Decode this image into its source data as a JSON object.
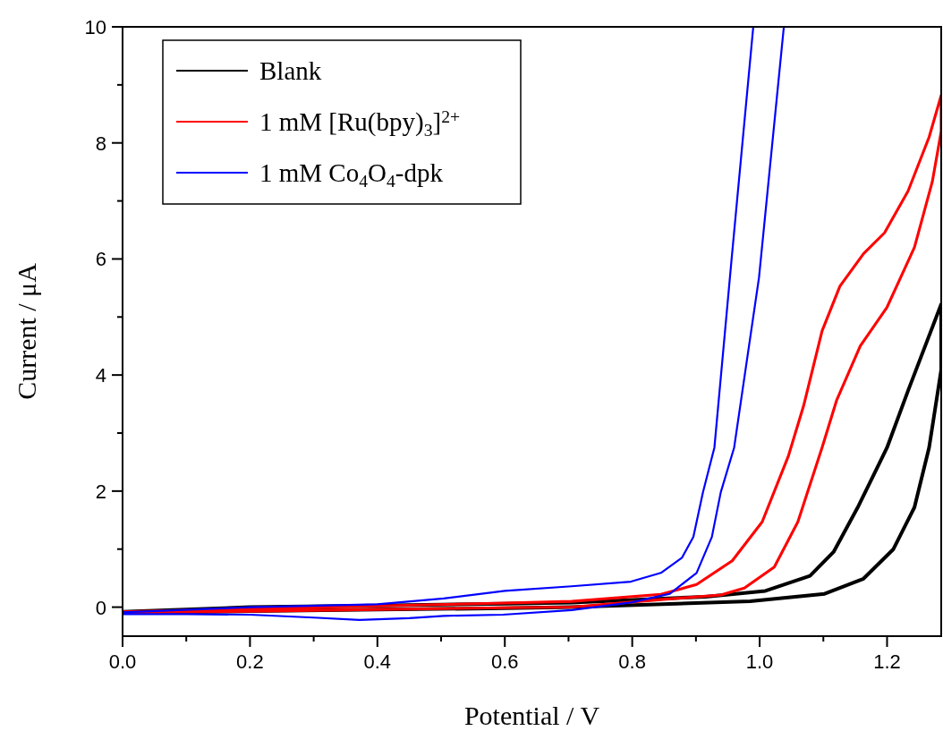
{
  "chart_data": {
    "type": "line",
    "xlabel": "Potential / V",
    "ylabel": "Current / μA",
    "xlim": [
      0,
      1.285
    ],
    "ylim": [
      -0.5,
      10
    ],
    "xticks": [
      {
        "value": 0,
        "label": "0.0"
      },
      {
        "value": 0.1,
        "label": null
      },
      {
        "value": 0.2,
        "label": "0.2"
      },
      {
        "value": 0.3,
        "label": null
      },
      {
        "value": 0.4,
        "label": "0.4"
      },
      {
        "value": 0.5,
        "label": null
      },
      {
        "value": 0.6,
        "label": "0.6"
      },
      {
        "value": 0.7,
        "label": null
      },
      {
        "value": 0.8,
        "label": "0.8"
      },
      {
        "value": 0.9,
        "label": null
      },
      {
        "value": 1.0,
        "label": "1.0"
      },
      {
        "value": 1.1,
        "label": null
      },
      {
        "value": 1.2,
        "label": "1.2"
      }
    ],
    "yticks": [
      0,
      {
        "value": 1,
        "label": null
      },
      2,
      {
        "value": 3,
        "label": null
      },
      4,
      {
        "value": 5,
        "label": null
      },
      6,
      {
        "value": 7,
        "label": null
      },
      8,
      {
        "value": 9,
        "label": null
      },
      10
    ],
    "legend": "top left",
    "grid": false,
    "marker": "none",
    "line_style": "solid",
    "series": [
      {
        "name": "Blank",
        "color": "#000000",
        "x": [
          0,
          0.2,
          0.4,
          0.6,
          0.705,
          0.985,
          1.102,
          1.163,
          1.21,
          1.243,
          1.266,
          1.285,
          1.285,
          1.233,
          1.2,
          1.154,
          1.116,
          1.079,
          1.009,
          0.915,
          0.705,
          0.6,
          0.4,
          0.2,
          0
        ],
        "values": [
          -0.1,
          -0.07,
          -0.04,
          -0.02,
          0.0,
          0.1,
          0.23,
          0.49,
          1.0,
          1.72,
          2.75,
          4.09,
          5.22,
          3.73,
          2.75,
          1.72,
          0.95,
          0.54,
          0.28,
          0.18,
          0.08,
          0.06,
          0.03,
          0.0,
          -0.08
        ]
      },
      {
        "name": "1 mM [Ru(bpy)$_{3}$]$^{2+}$",
        "color": "#ff0000",
        "x": [
          0,
          0.2,
          0.4,
          0.6,
          0.705,
          0.845,
          0.939,
          0.976,
          1.023,
          1.06,
          1.098,
          1.121,
          1.158,
          1.2,
          1.243,
          1.271,
          1.285,
          1.285,
          1.266,
          1.233,
          1.196,
          1.163,
          1.126,
          1.098,
          1.069,
          1.045,
          1.004,
          0.957,
          0.901,
          0.845,
          0.705,
          0.6,
          0.4,
          0.2,
          0
        ],
        "values": [
          -0.1,
          -0.07,
          -0.04,
          -0.01,
          0.0,
          0.13,
          0.21,
          0.33,
          0.69,
          1.47,
          2.75,
          3.57,
          4.5,
          5.17,
          6.2,
          7.33,
          8.2,
          8.82,
          8.1,
          7.17,
          6.45,
          6.09,
          5.53,
          4.76,
          3.47,
          2.6,
          1.47,
          0.8,
          0.39,
          0.22,
          0.1,
          0.07,
          0.02,
          -0.03,
          -0.08
        ]
      },
      {
        "name": "1 mM Co$_{4}$O$_{4}$-dpk",
        "color": "#0000ff",
        "x": [
          0,
          0.1,
          0.2,
          0.3,
          0.372,
          0.45,
          0.504,
          0.597,
          0.705,
          0.798,
          0.859,
          0.901,
          0.925,
          0.939,
          0.96,
          0.999,
          1.038,
          1.01,
          0.99,
          0.956,
          0.929,
          0.911,
          0.896,
          0.878,
          0.845,
          0.798,
          0.705,
          0.6,
          0.504,
          0.4,
          0.2,
          0
        ],
        "values": [
          -0.12,
          -0.12,
          -0.13,
          -0.18,
          -0.22,
          -0.19,
          -0.15,
          -0.13,
          -0.05,
          0.08,
          0.23,
          0.59,
          1.21,
          1.98,
          2.75,
          5.68,
          10,
          null,
          10,
          6,
          2.75,
          1.98,
          1.21,
          0.85,
          0.59,
          0.44,
          0.36,
          0.28,
          0.15,
          0.05,
          0.0,
          -0.09
        ]
      }
    ]
  }
}
